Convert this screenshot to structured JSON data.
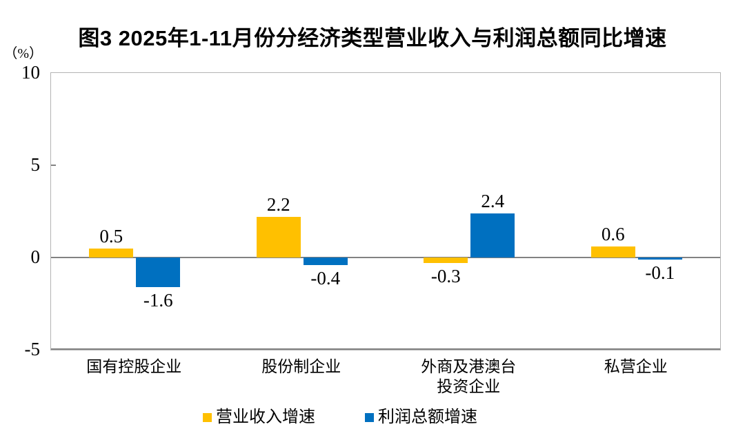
{
  "title": "图3 2025年1-11月份分经济类型营业收入与利润总额同比增速",
  "y_axis": {
    "unit_label": "（%）",
    "tick_labels": [
      "10",
      "5",
      "0",
      "-5"
    ]
  },
  "legend": {
    "items": [
      "营业收入增速",
      "利润总额增速"
    ]
  },
  "colors": {
    "revenue_series": "#FFC000",
    "profit_series": "#0070C0",
    "axis_line": "#828282",
    "plot_border": "#B3B3B3"
  },
  "chart_data": {
    "type": "bar",
    "title": "图3 2025年1-11月份分经济类型营业收入与利润总额同比增速",
    "categories": [
      "国有控股企业",
      "股份制企业",
      "外商及港澳台\n投资企业",
      "私营企业"
    ],
    "series": [
      {
        "name": "营业收入增速",
        "color": "#FFC000",
        "values": [
          0.5,
          2.2,
          -0.3,
          0.6
        ]
      },
      {
        "name": "利润总额增速",
        "color": "#0070C0",
        "values": [
          -1.6,
          -0.4,
          2.4,
          -0.1
        ]
      }
    ],
    "data_labels": [
      [
        "0.5",
        "2.2",
        "-0.3",
        "0.6"
      ],
      [
        "-1.6",
        "-0.4",
        "2.4",
        "-0.1"
      ]
    ],
    "xlabel": "",
    "ylabel": "（%）",
    "ylim": [
      -5,
      10
    ],
    "yticks": [
      10,
      5,
      0,
      -5
    ],
    "grid": false,
    "zero_line": true,
    "legend_position": "bottom"
  }
}
